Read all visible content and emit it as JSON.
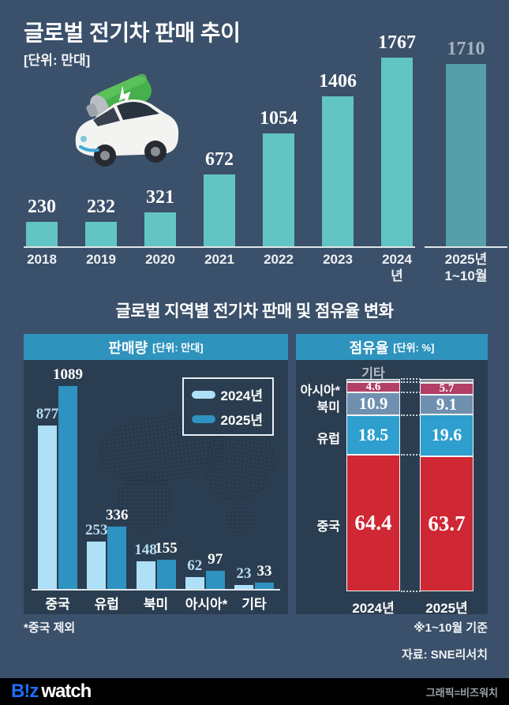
{
  "header": {
    "title": "글로벌 전기차 판매 추이",
    "unit": "[단위: 만대]"
  },
  "section": {
    "title": "글로벌 지역별 전기차 판매 및 점유율 변화"
  },
  "panels": {
    "sales": {
      "title": "판매량",
      "unit": "[단위: 만대]"
    },
    "share": {
      "title": "점유율",
      "unit": "[단위: %]"
    }
  },
  "colors": {
    "background": "#3b506a",
    "panel_background": "#2b3d50",
    "panel_header": "#2e93bd",
    "annual_bar": "#63c5c3",
    "annual_bar_partial": "#55a0a8",
    "annual_value_text": "#fbfbfb",
    "annual_value_text_partial": "#a7b2bf"
  },
  "chart_data": [
    {
      "type": "bar",
      "title": "글로벌 전기차 판매 추이",
      "unit": "만대",
      "categories": [
        "2018",
        "2019",
        "2020",
        "2021",
        "2022",
        "2023",
        "2024년",
        "2025년\n1~10월"
      ],
      "values": [
        230,
        232,
        321,
        672,
        1054,
        1406,
        1767,
        1710
      ],
      "partial_last_bar": true,
      "ylim": [
        0,
        1767
      ]
    },
    {
      "type": "bar",
      "title": "판매량 [단위: 만대]",
      "categories": [
        "중국",
        "유럽",
        "북미",
        "아시아*",
        "기타"
      ],
      "series": [
        {
          "name": "2024년",
          "values": [
            877,
            253,
            148,
            62,
            23
          ],
          "color": "#aee0f7",
          "label_color": "#b9ddf2"
        },
        {
          "name": "2025년",
          "values": [
            1089,
            336,
            155,
            97,
            33
          ],
          "color": "#2e93c0",
          "label_color": "#ffffff"
        }
      ],
      "legend_position": "top-right",
      "ylim": [
        0,
        1089
      ]
    },
    {
      "type": "stacked-bar",
      "title": "점유율 [단위: %]",
      "categories": [
        "2024년",
        "2025년"
      ],
      "series": [
        {
          "name": "기타",
          "values": [
            1.6,
            1.9
          ],
          "color": "#8f949d",
          "labeled": false
        },
        {
          "name": "아시아*",
          "values": [
            4.6,
            5.7
          ],
          "color": "#b23f66",
          "labeled": true
        },
        {
          "name": "북미",
          "values": [
            10.9,
            9.1
          ],
          "color": "#7090af",
          "labeled": true
        },
        {
          "name": "유럽",
          "values": [
            18.5,
            19.6
          ],
          "color": "#2e9fce",
          "labeled": true
        },
        {
          "name": "중국",
          "values": [
            64.4,
            63.7
          ],
          "color": "#cf2733",
          "labeled": true
        }
      ],
      "ylim": [
        0,
        100
      ]
    }
  ],
  "notes": {
    "china_exclude": "*중국 제외",
    "period": "※1~10월 기준",
    "source": "자료: SNE리서치"
  },
  "footer": {
    "logo_primary": "B!z",
    "logo_secondary": "watch",
    "credit": "그래픽=비즈워치"
  }
}
